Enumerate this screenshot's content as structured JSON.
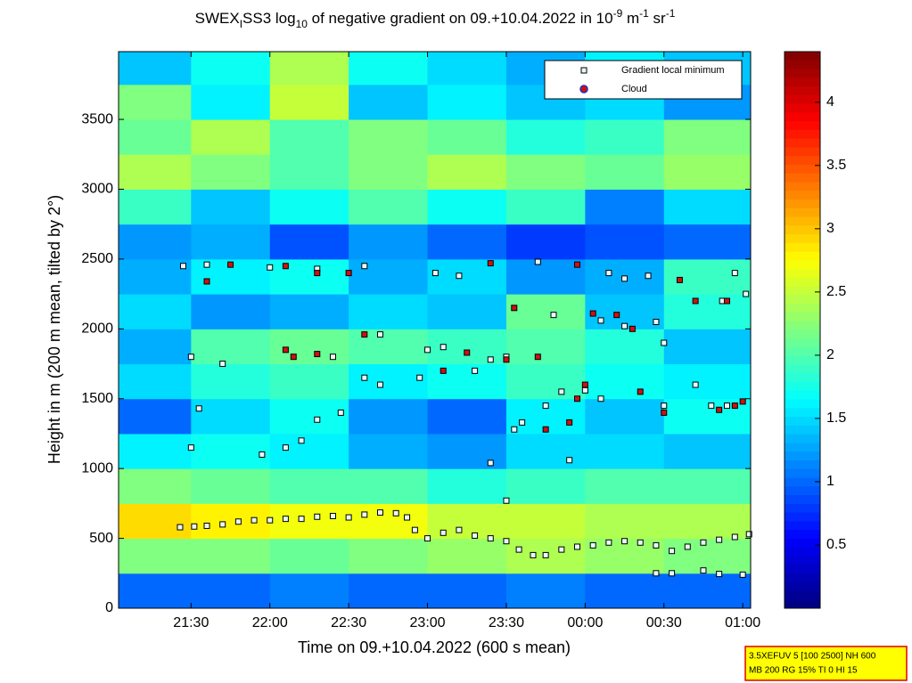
{
  "chart_data": {
    "type": "heatmap",
    "title": [
      "SWEX",
      "I",
      "SS3 log",
      "10",
      " of negative gradient on 09.+10.04.2022 in 10",
      "-9",
      " m",
      "-1",
      " sr",
      "-1"
    ],
    "x_label": "Time on 09.+10.04.2022 (600 s mean)",
    "y_label": "Height in m (200 m mean, tilted by 2°)",
    "xlim": [
      21.04,
      25.05
    ],
    "xticks": [
      {
        "value": 21.5,
        "label": "21:30"
      },
      {
        "value": 22,
        "label": "22:00"
      },
      {
        "value": 22.5,
        "label": "22:30"
      },
      {
        "value": 23,
        "label": "23:00"
      },
      {
        "value": 23.5,
        "label": "23:30"
      },
      {
        "value": 24,
        "label": "00:00"
      },
      {
        "value": 24.5,
        "label": "00:30"
      },
      {
        "value": 25,
        "label": "01:00"
      }
    ],
    "ylim": [
      0,
      3985
    ],
    "yticks": [
      0,
      500,
      1000,
      1500,
      2000,
      2500,
      3000,
      3500
    ],
    "x_bins": [
      21.04,
      21.5,
      22,
      22.5,
      23,
      23.5,
      24,
      24.5,
      25.05
    ],
    "y_bins": [
      0,
      250,
      500,
      750,
      1000,
      1250,
      1500,
      1750,
      2000,
      2250,
      2500,
      2750,
      3000,
      3250,
      3500,
      3750,
      4000
    ],
    "z": [
      [
        1.0,
        1.0,
        1.1,
        1.0,
        1.0,
        1.1,
        1.0,
        1.0
      ],
      [
        2.2,
        2.2,
        2.1,
        2.2,
        2.3,
        2.4,
        2.3,
        2.2
      ],
      [
        2.9,
        2.8,
        2.7,
        2.7,
        2.5,
        2.5,
        2.4,
        2.4
      ],
      [
        2.2,
        2.1,
        2.0,
        2.0,
        1.8,
        1.9,
        2.0,
        2.0
      ],
      [
        1.6,
        1.7,
        1.6,
        1.3,
        1.2,
        1.5,
        1.5,
        1.4
      ],
      [
        1.0,
        1.5,
        1.7,
        1.2,
        1.0,
        1.6,
        1.4,
        1.7
      ],
      [
        1.5,
        1.8,
        1.9,
        1.6,
        1.7,
        1.9,
        1.7,
        1.6
      ],
      [
        1.3,
        2.0,
        2.1,
        2.0,
        1.9,
        2.0,
        1.8,
        1.4
      ],
      [
        1.5,
        1.2,
        1.3,
        1.5,
        1.4,
        2.1,
        1.4,
        1.8
      ],
      [
        1.3,
        1.6,
        1.7,
        1.3,
        1.5,
        1.2,
        1.3,
        1.9
      ],
      [
        1.2,
        1.3,
        0.9,
        1.2,
        1.0,
        0.8,
        0.9,
        1.0
      ],
      [
        1.9,
        1.4,
        1.7,
        2.0,
        1.7,
        1.9,
        1.1,
        1.5
      ],
      [
        2.4,
        2.2,
        2.0,
        2.2,
        2.4,
        2.2,
        2.1,
        2.3
      ],
      [
        2.1,
        2.4,
        2.0,
        2.2,
        2.1,
        1.8,
        1.9,
        2.2
      ],
      [
        2.2,
        1.6,
        2.5,
        1.4,
        1.6,
        1.4,
        1.5,
        1.2
      ],
      [
        1.4,
        1.7,
        2.4,
        1.7,
        1.5,
        1.3,
        1.6,
        1.4
      ]
    ],
    "colorbar": {
      "lim": [
        0,
        4.4
      ],
      "ticks": [
        0.5,
        1,
        1.5,
        2,
        2.5,
        3,
        3.5,
        4
      ]
    },
    "series": [
      {
        "name": "Gradient local minimum",
        "color": "#e8f8f8",
        "x": [
          21.43,
          21.52,
          21.6,
          21.7,
          21.8,
          21.9,
          22.0,
          22.1,
          22.2,
          22.3,
          22.4,
          22.5,
          22.6,
          22.7,
          22.8,
          22.87,
          22.92,
          23.0,
          23.1,
          23.2,
          23.3,
          23.4,
          23.5,
          23.58,
          23.67,
          23.75,
          23.85,
          23.95,
          24.05,
          24.15,
          24.25,
          24.35,
          24.45,
          24.55,
          24.65,
          24.75,
          24.85,
          24.95,
          25.04,
          24.45,
          24.55,
          24.75,
          24.85,
          25.0,
          21.45,
          21.6,
          21.5,
          21.7,
          21.5,
          21.55,
          21.95,
          22.1,
          22.2,
          22.3,
          22.45,
          22.4,
          22.6,
          22.7,
          22.7,
          22.95,
          23.0,
          23.1,
          23.3,
          23.4,
          23.5,
          23.55,
          23.6,
          23.4,
          23.5,
          23.75,
          23.9,
          23.8,
          23.85,
          24.0,
          24.1,
          24.1,
          24.25,
          24.45,
          24.5,
          24.7,
          24.8,
          24.9,
          25.02,
          24.87,
          24.95,
          24.5,
          24.4,
          24.25,
          24.15,
          23.7,
          22.3,
          22.6,
          23.2,
          23.05,
          22.0
        ],
        "y": [
          580,
          585,
          590,
          600,
          620,
          630,
          630,
          640,
          640,
          655,
          660,
          650,
          670,
          685,
          680,
          650,
          560,
          500,
          540,
          560,
          520,
          500,
          480,
          420,
          380,
          380,
          420,
          440,
          450,
          470,
          480,
          470,
          450,
          410,
          440,
          470,
          490,
          510,
          530,
          250,
          250,
          270,
          245,
          240,
          2450,
          2460,
          1800,
          1750,
          1150,
          1430,
          1100,
          1150,
          1200,
          1350,
          1400,
          1800,
          1650,
          1600,
          1960,
          1650,
          1850,
          1870,
          1700,
          1780,
          1800,
          1280,
          1330,
          1040,
          770,
          1450,
          1060,
          2100,
          1550,
          1560,
          1500,
          2060,
          2020,
          2050,
          1450,
          1600,
          1450,
          1450,
          2250,
          2200,
          2400,
          1900,
          2380,
          2360,
          2400,
          2480,
          2430,
          2450,
          2380,
          2400,
          2440
        ]
      },
      {
        "name": "Cloud",
        "color": "#d01010",
        "x": [
          21.6,
          21.75,
          22.1,
          22.3,
          22.5,
          22.1,
          22.3,
          22.6,
          22.15,
          23.4,
          23.55,
          23.5,
          23.7,
          23.75,
          23.9,
          23.95,
          24.0,
          24.05,
          24.2,
          24.3,
          24.35,
          24.5,
          24.6,
          24.7,
          24.95,
          25.0,
          24.9,
          24.85,
          23.95,
          23.25,
          23.1
        ],
        "y": [
          2340,
          2460,
          2450,
          2400,
          2400,
          1850,
          1820,
          1960,
          1800,
          2470,
          2150,
          1780,
          1800,
          1280,
          1330,
          1500,
          1600,
          2110,
          2100,
          2000,
          1550,
          1400,
          2350,
          2200,
          1450,
          1480,
          2200,
          1420,
          2460,
          1830,
          1700
        ]
      }
    ],
    "annotations": [
      "3.5XEFUV 5 [100 2500] NH 600",
      "MB 200 RG 15% TI 0 HI 15"
    ]
  }
}
